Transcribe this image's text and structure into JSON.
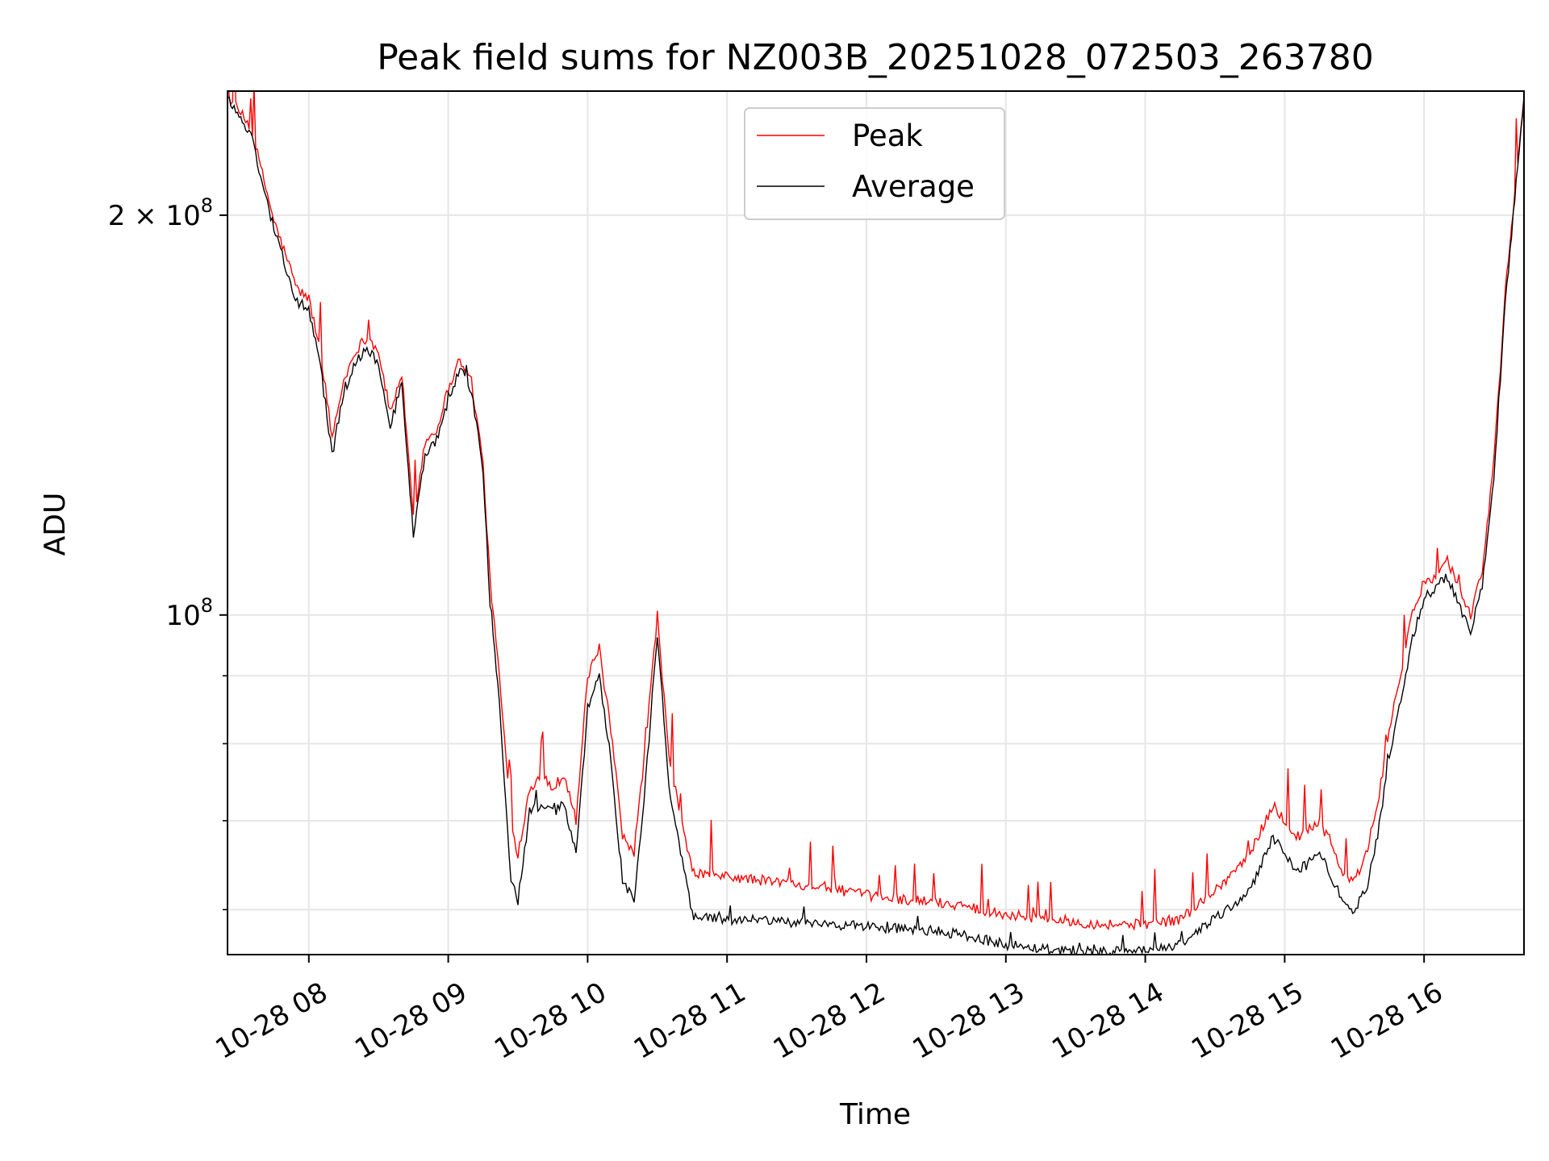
{
  "chart_data": {
    "type": "line",
    "title": "Peak field sums for NZ003B_20251028_072503_263780",
    "xlabel": "Time",
    "ylabel": "ADU",
    "yscale": "log",
    "grid": true,
    "legend_placement": "top-center",
    "x_ticks": [
      "10-28 08",
      "10-28 09",
      "10-28 10",
      "10-28 11",
      "10-28 12",
      "10-28 13",
      "10-28 14",
      "10-28 15",
      "10-28 16"
    ],
    "y_tick_labels": [
      {
        "value": 200000000,
        "base": "2 × 10",
        "exp": "8"
      },
      {
        "value": 100000000,
        "base": "10",
        "exp": "8"
      }
    ],
    "y_minor_ticks": [
      60000000,
      70000000,
      80000000,
      90000000
    ],
    "xlim": [
      "2025-10-28 07:25",
      "2025-10-28 16:43"
    ],
    "ylim": [
      55500000,
      248000000
    ],
    "series": [
      {
        "name": "Peak",
        "color": "#ff0000",
        "x": [
          "2025-10-28 07:25",
          "2025-10-28 07:35",
          "2025-10-28 07:45",
          "2025-10-28 07:55",
          "2025-10-28 08:00",
          "2025-10-28 08:05",
          "2025-10-28 08:10",
          "2025-10-28 08:15",
          "2025-10-28 08:20",
          "2025-10-28 08:25",
          "2025-10-28 08:30",
          "2025-10-28 08:35",
          "2025-10-28 08:40",
          "2025-10-28 08:45",
          "2025-10-28 08:50",
          "2025-10-28 08:55",
          "2025-10-28 09:00",
          "2025-10-28 09:05",
          "2025-10-28 09:10",
          "2025-10-28 09:15",
          "2025-10-28 09:18",
          "2025-10-28 09:22",
          "2025-10-28 09:27",
          "2025-10-28 09:30",
          "2025-10-28 09:35",
          "2025-10-28 09:40",
          "2025-10-28 09:45",
          "2025-10-28 09:50",
          "2025-10-28 09:55",
          "2025-10-28 10:00",
          "2025-10-28 10:05",
          "2025-10-28 10:10",
          "2025-10-28 10:15",
          "2025-10-28 10:20",
          "2025-10-28 10:25",
          "2025-10-28 10:30",
          "2025-10-28 10:35",
          "2025-10-28 10:45",
          "2025-10-28 11:00",
          "2025-10-28 11:20",
          "2025-10-28 11:40",
          "2025-10-28 12:00",
          "2025-10-28 12:20",
          "2025-10-28 12:40",
          "2025-10-28 13:00",
          "2025-10-28 13:20",
          "2025-10-28 13:40",
          "2025-10-28 14:00",
          "2025-10-28 14:15",
          "2025-10-28 14:30",
          "2025-10-28 14:45",
          "2025-10-28 14:55",
          "2025-10-28 15:05",
          "2025-10-28 15:15",
          "2025-10-28 15:25",
          "2025-10-28 15:30",
          "2025-10-28 15:35",
          "2025-10-28 15:40",
          "2025-10-28 15:45",
          "2025-10-28 15:55",
          "2025-10-28 16:00",
          "2025-10-28 16:05",
          "2025-10-28 16:10",
          "2025-10-28 16:15",
          "2025-10-28 16:20",
          "2025-10-28 16:25",
          "2025-10-28 16:30",
          "2025-10-28 16:35",
          "2025-10-28 16:43"
        ],
        "y": [
          246000000,
          233000000,
          198000000,
          176000000,
          173000000,
          158000000,
          136000000,
          150000000,
          158000000,
          162000000,
          158000000,
          142000000,
          152000000,
          118000000,
          135000000,
          138000000,
          148000000,
          156000000,
          150000000,
          130000000,
          106000000,
          90000000,
          70000000,
          66000000,
          74000000,
          76000000,
          74000000,
          76000000,
          70000000,
          90000000,
          94000000,
          82000000,
          68000000,
          66000000,
          80000000,
          100000000,
          78000000,
          64000000,
          63500000,
          63000000,
          62500000,
          61500000,
          61000000,
          60500000,
          59500000,
          59000000,
          58500000,
          58500000,
          59000000,
          62000000,
          66000000,
          72000000,
          68000000,
          70000000,
          64000000,
          63000000,
          66000000,
          72000000,
          82000000,
          100000000,
          106000000,
          107000000,
          110000000,
          105000000,
          100000000,
          108000000,
          130000000,
          175000000,
          246000000
        ]
      },
      {
        "name": "Average",
        "color": "#000000",
        "x": [
          "2025-10-28 07:25",
          "2025-10-28 07:35",
          "2025-10-28 07:45",
          "2025-10-28 07:55",
          "2025-10-28 08:00",
          "2025-10-28 08:05",
          "2025-10-28 08:10",
          "2025-10-28 08:15",
          "2025-10-28 08:20",
          "2025-10-28 08:25",
          "2025-10-28 08:30",
          "2025-10-28 08:35",
          "2025-10-28 08:40",
          "2025-10-28 08:45",
          "2025-10-28 08:50",
          "2025-10-28 08:55",
          "2025-10-28 09:00",
          "2025-10-28 09:05",
          "2025-10-28 09:10",
          "2025-10-28 09:15",
          "2025-10-28 09:18",
          "2025-10-28 09:22",
          "2025-10-28 09:27",
          "2025-10-28 09:30",
          "2025-10-28 09:35",
          "2025-10-28 09:40",
          "2025-10-28 09:45",
          "2025-10-28 09:50",
          "2025-10-28 09:55",
          "2025-10-28 10:00",
          "2025-10-28 10:05",
          "2025-10-28 10:10",
          "2025-10-28 10:15",
          "2025-10-28 10:20",
          "2025-10-28 10:25",
          "2025-10-28 10:30",
          "2025-10-28 10:35",
          "2025-10-28 10:45",
          "2025-10-28 11:00",
          "2025-10-28 11:20",
          "2025-10-28 11:40",
          "2025-10-28 12:00",
          "2025-10-28 12:20",
          "2025-10-28 12:40",
          "2025-10-28 13:00",
          "2025-10-28 13:20",
          "2025-10-28 13:40",
          "2025-10-28 14:00",
          "2025-10-28 14:15",
          "2025-10-28 14:30",
          "2025-10-28 14:45",
          "2025-10-28 14:55",
          "2025-10-28 15:05",
          "2025-10-28 15:15",
          "2025-10-28 15:25",
          "2025-10-28 15:30",
          "2025-10-28 15:35",
          "2025-10-28 15:40",
          "2025-10-28 15:45",
          "2025-10-28 15:55",
          "2025-10-28 16:00",
          "2025-10-28 16:05",
          "2025-10-28 16:10",
          "2025-10-28 16:15",
          "2025-10-28 16:20",
          "2025-10-28 16:25",
          "2025-10-28 16:30",
          "2025-10-28 16:35",
          "2025-10-28 16:43"
        ],
        "y": [
          245000000,
          230000000,
          195000000,
          172000000,
          170000000,
          154000000,
          132000000,
          147000000,
          155000000,
          159000000,
          155000000,
          139000000,
          149000000,
          115000000,
          132000000,
          135000000,
          145000000,
          153000000,
          148000000,
          128000000,
          102000000,
          86000000,
          63000000,
          61000000,
          71000000,
          72000000,
          71000000,
          72000000,
          66000000,
          85000000,
          90000000,
          78000000,
          63000000,
          61000000,
          75000000,
          97000000,
          74000000,
          59500000,
          59000000,
          58800000,
          58500000,
          58300000,
          58000000,
          57500000,
          56500000,
          56000000,
          55800000,
          55800000,
          56500000,
          59000000,
          62000000,
          68000000,
          64000000,
          66000000,
          61000000,
          60000000,
          62000000,
          68000000,
          78000000,
          96000000,
          103000000,
          105000000,
          107000000,
          102000000,
          97000000,
          105000000,
          127000000,
          172000000,
          245000000
        ]
      }
    ]
  }
}
